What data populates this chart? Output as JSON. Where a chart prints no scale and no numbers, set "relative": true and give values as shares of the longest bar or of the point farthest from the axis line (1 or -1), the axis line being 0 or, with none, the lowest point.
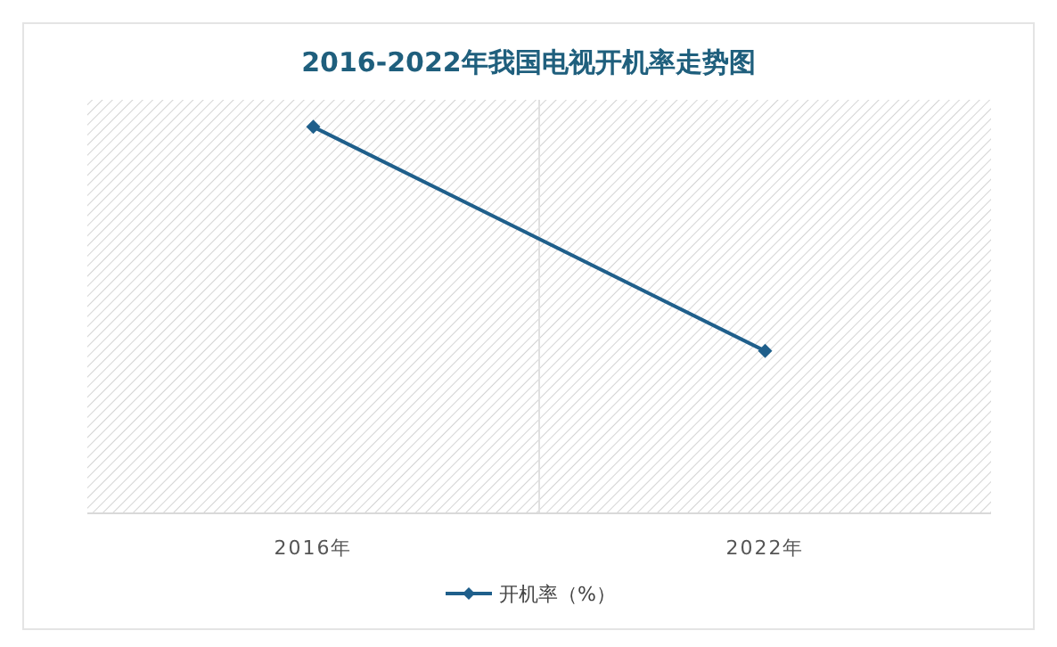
{
  "chart_data": {
    "type": "line",
    "title": "2016-2022年我国电视开机率走势图",
    "categories": [
      "2016年",
      "2022年"
    ],
    "series": [
      {
        "name": "开机率（%）",
        "color": "#1f5f8b",
        "values": [
          1,
          0.42
        ]
      }
    ],
    "relative": true,
    "marker": "diamond",
    "grid": "x",
    "legend": "bottom"
  }
}
